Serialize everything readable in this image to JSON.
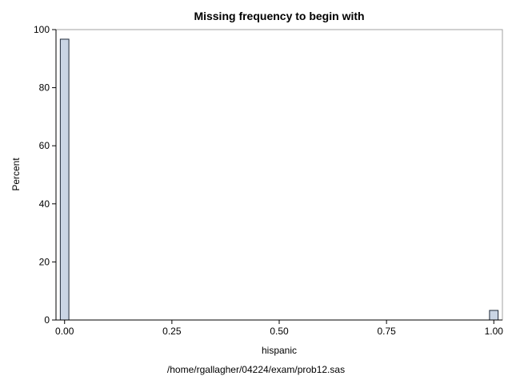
{
  "chart_data": {
    "type": "bar",
    "title": "Missing frequency to begin with",
    "xlabel": "hispanic",
    "ylabel": "Percent",
    "footnote": "/home/rgallagher/04224/exam/prob12.sas",
    "x": [
      0,
      1
    ],
    "values": [
      96.7,
      3.3
    ],
    "bin_width": 0.02,
    "xlim": [
      -0.02,
      1.02
    ],
    "ylim": [
      0,
      100
    ],
    "xticks": [
      0,
      0.25,
      0.5,
      0.75,
      1
    ],
    "xtick_labels": [
      "0.00",
      "0.25",
      "0.50",
      "0.75",
      "1.00"
    ],
    "yticks": [
      0,
      20,
      40,
      60,
      80,
      100
    ],
    "ytick_labels": [
      "0",
      "20",
      "40",
      "60",
      "80",
      "100"
    ],
    "grid": false,
    "colors": {
      "bar_fill": "#cad5e5",
      "bar_stroke": "#1f2a3a",
      "frame": "#a0a0a0",
      "axis": "#000000"
    }
  }
}
